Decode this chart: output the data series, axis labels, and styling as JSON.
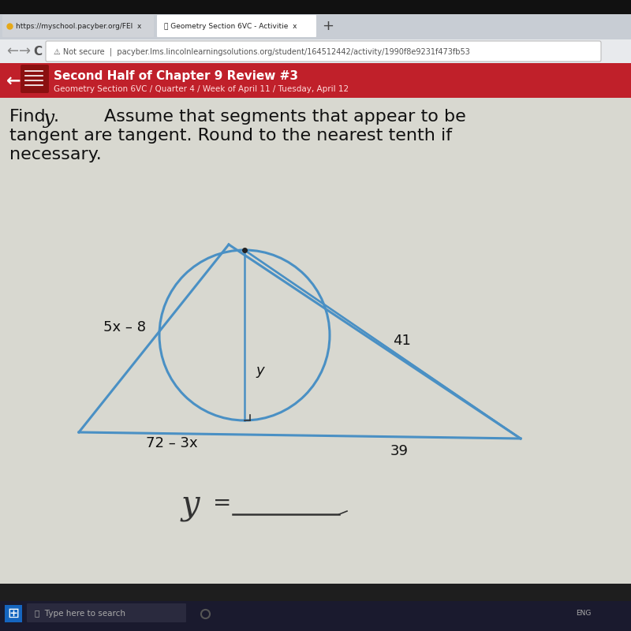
{
  "bg_color": "#1e1e1e",
  "tab_bar_color": "#c8cdd4",
  "nav_bar_color": "#e8eaed",
  "red_bar_color": "#c0202a",
  "content_bg": "#dcdcdc",
  "white": "#ffffff",
  "black": "#111111",
  "blue": "#4a90c4",
  "dark_gray": "#555555",
  "tab1_text": "https://myschool.pacyber.org/FEl  x",
  "tab2_text": "Geometry Section 6VC - Activitie  x",
  "url_text": "A Not secure  |  pacyber.lms.lincolnlearningsolutions.org/student/164512442/activity/1990f8e9231f473fb53",
  "header_title": "Second Half of Chapter 9 Review #3",
  "header_subtitle": "Geometry Section 6VC / Quarter 4 / Week of April 11 / Tuesday, April 12",
  "label_5x8": "5x – 8",
  "label_72_3x": "72 – 3x",
  "label_y": "y",
  "label_41": "41",
  "label_39": "39",
  "taskbar_color": "#1a1a2e",
  "taskbar_search": "Type here to search"
}
